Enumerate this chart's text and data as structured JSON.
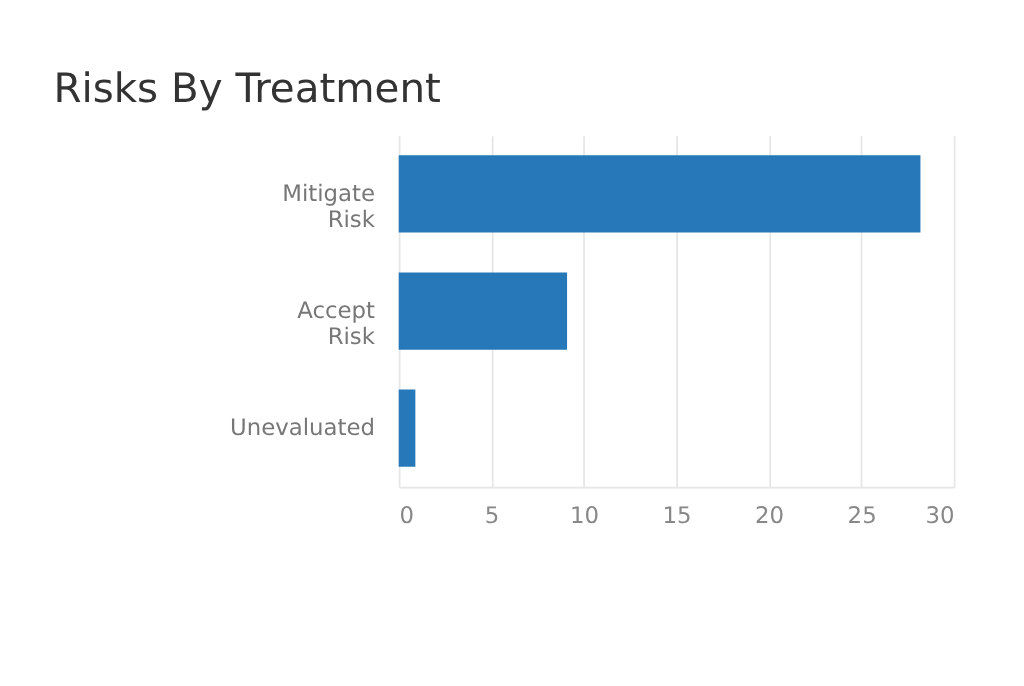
{
  "chart_data": {
    "type": "bar",
    "title": "Risks By Treatment",
    "orientation": "horizontal",
    "categories": [
      "Mitigate Risk",
      "Accept Risk",
      "Unevaluated"
    ],
    "values": [
      28.2,
      9.1,
      0.9
    ],
    "color": "#2678b9",
    "xlim": [
      0,
      30
    ],
    "xticks": [
      0,
      5,
      10,
      15,
      20,
      25,
      30
    ],
    "grid": "x"
  }
}
